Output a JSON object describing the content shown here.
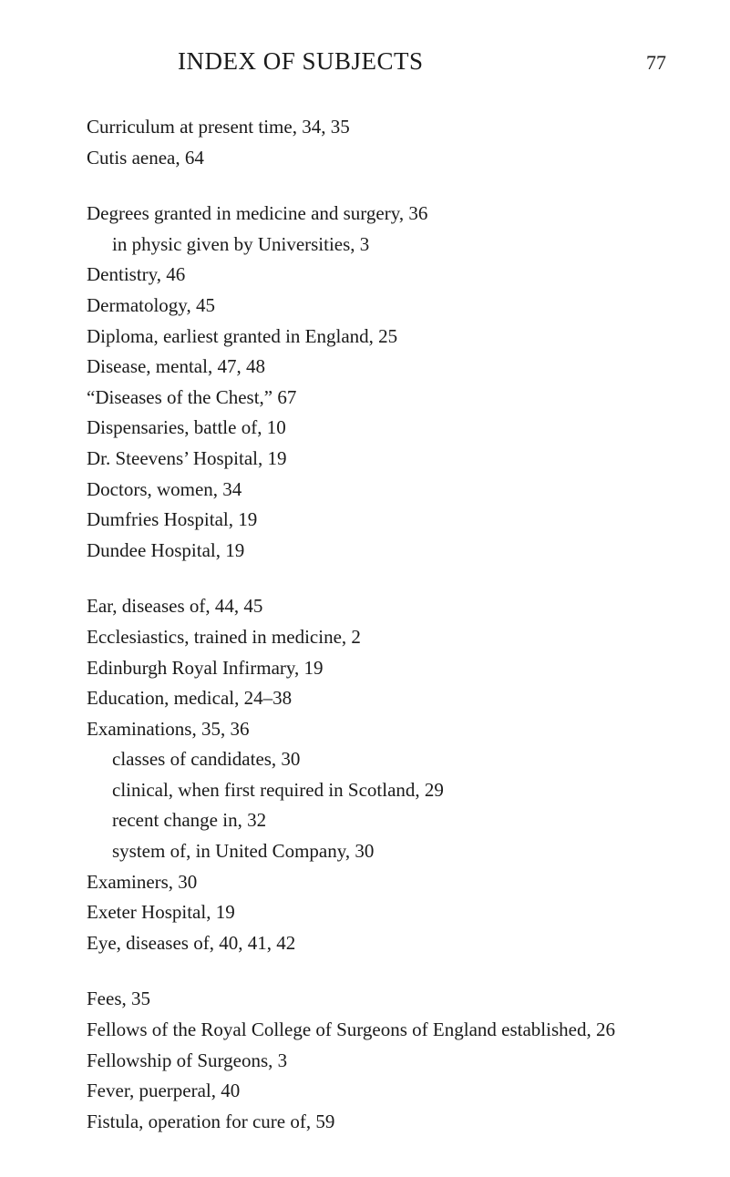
{
  "header": {
    "title": "INDEX OF SUBJECTS",
    "page_number": "77"
  },
  "groups": [
    {
      "entries": [
        {
          "text": "Curriculum at present time, 34, 35",
          "indent": 0
        },
        {
          "text": "Cutis aenea, 64",
          "indent": 0
        }
      ]
    },
    {
      "entries": [
        {
          "text": "Degrees granted in medicine and surgery, 36",
          "indent": 0
        },
        {
          "text": "in physic given by Universities, 3",
          "indent": 1
        },
        {
          "text": "Dentistry, 46",
          "indent": 0
        },
        {
          "text": "Dermatology, 45",
          "indent": 0
        },
        {
          "text": "Diploma, earliest granted in England, 25",
          "indent": 0
        },
        {
          "text": "Disease, mental, 47, 48",
          "indent": 0
        },
        {
          "text": "“Diseases of the Chest,” 67",
          "indent": 0
        },
        {
          "text": "Dispensaries, battle of, 10",
          "indent": 0
        },
        {
          "text": "Dr. Steevens’ Hospital, 19",
          "indent": 0
        },
        {
          "text": "Doctors, women, 34",
          "indent": 0
        },
        {
          "text": "Dumfries Hospital, 19",
          "indent": 0
        },
        {
          "text": "Dundee Hospital, 19",
          "indent": 0
        }
      ]
    },
    {
      "entries": [
        {
          "text": "Ear, diseases of, 44, 45",
          "indent": 0
        },
        {
          "text": "Ecclesiastics, trained in medicine, 2",
          "indent": 0
        },
        {
          "text": "Edinburgh Royal Infirmary, 19",
          "indent": 0
        },
        {
          "text": "Education, medical, 24–38",
          "indent": 0
        },
        {
          "text": "Examinations, 35, 36",
          "indent": 0
        },
        {
          "text": "classes of candidates, 30",
          "indent": 1
        },
        {
          "text": "clinical, when first required in Scotland, 29",
          "indent": 1
        },
        {
          "text": "recent change in, 32",
          "indent": 1
        },
        {
          "text": "system of, in United Company, 30",
          "indent": 1
        },
        {
          "text": "Examiners, 30",
          "indent": 0
        },
        {
          "text": "Exeter Hospital, 19",
          "indent": 0
        },
        {
          "text": "Eye, diseases of, 40, 41, 42",
          "indent": 0
        }
      ]
    },
    {
      "entries": [
        {
          "text": "Fees, 35",
          "indent": 0
        },
        {
          "text": "Fellows of the Royal College of Surgeons of England established, 26",
          "indent": 0
        },
        {
          "text": "Fellowship of Surgeons, 3",
          "indent": 0
        },
        {
          "text": "Fever, puerperal, 40",
          "indent": 0
        },
        {
          "text": "Fistula, operation for cure of, 59",
          "indent": 0
        }
      ]
    }
  ],
  "styling": {
    "background_color": "#ffffff",
    "text_color": "#1a1a1a",
    "title_fontsize": 27,
    "body_fontsize": 21,
    "page_number_fontsize": 22,
    "font_family": "Georgia, serif",
    "line_height": 1.6,
    "group_spacing": 28,
    "indent_width": 28
  }
}
